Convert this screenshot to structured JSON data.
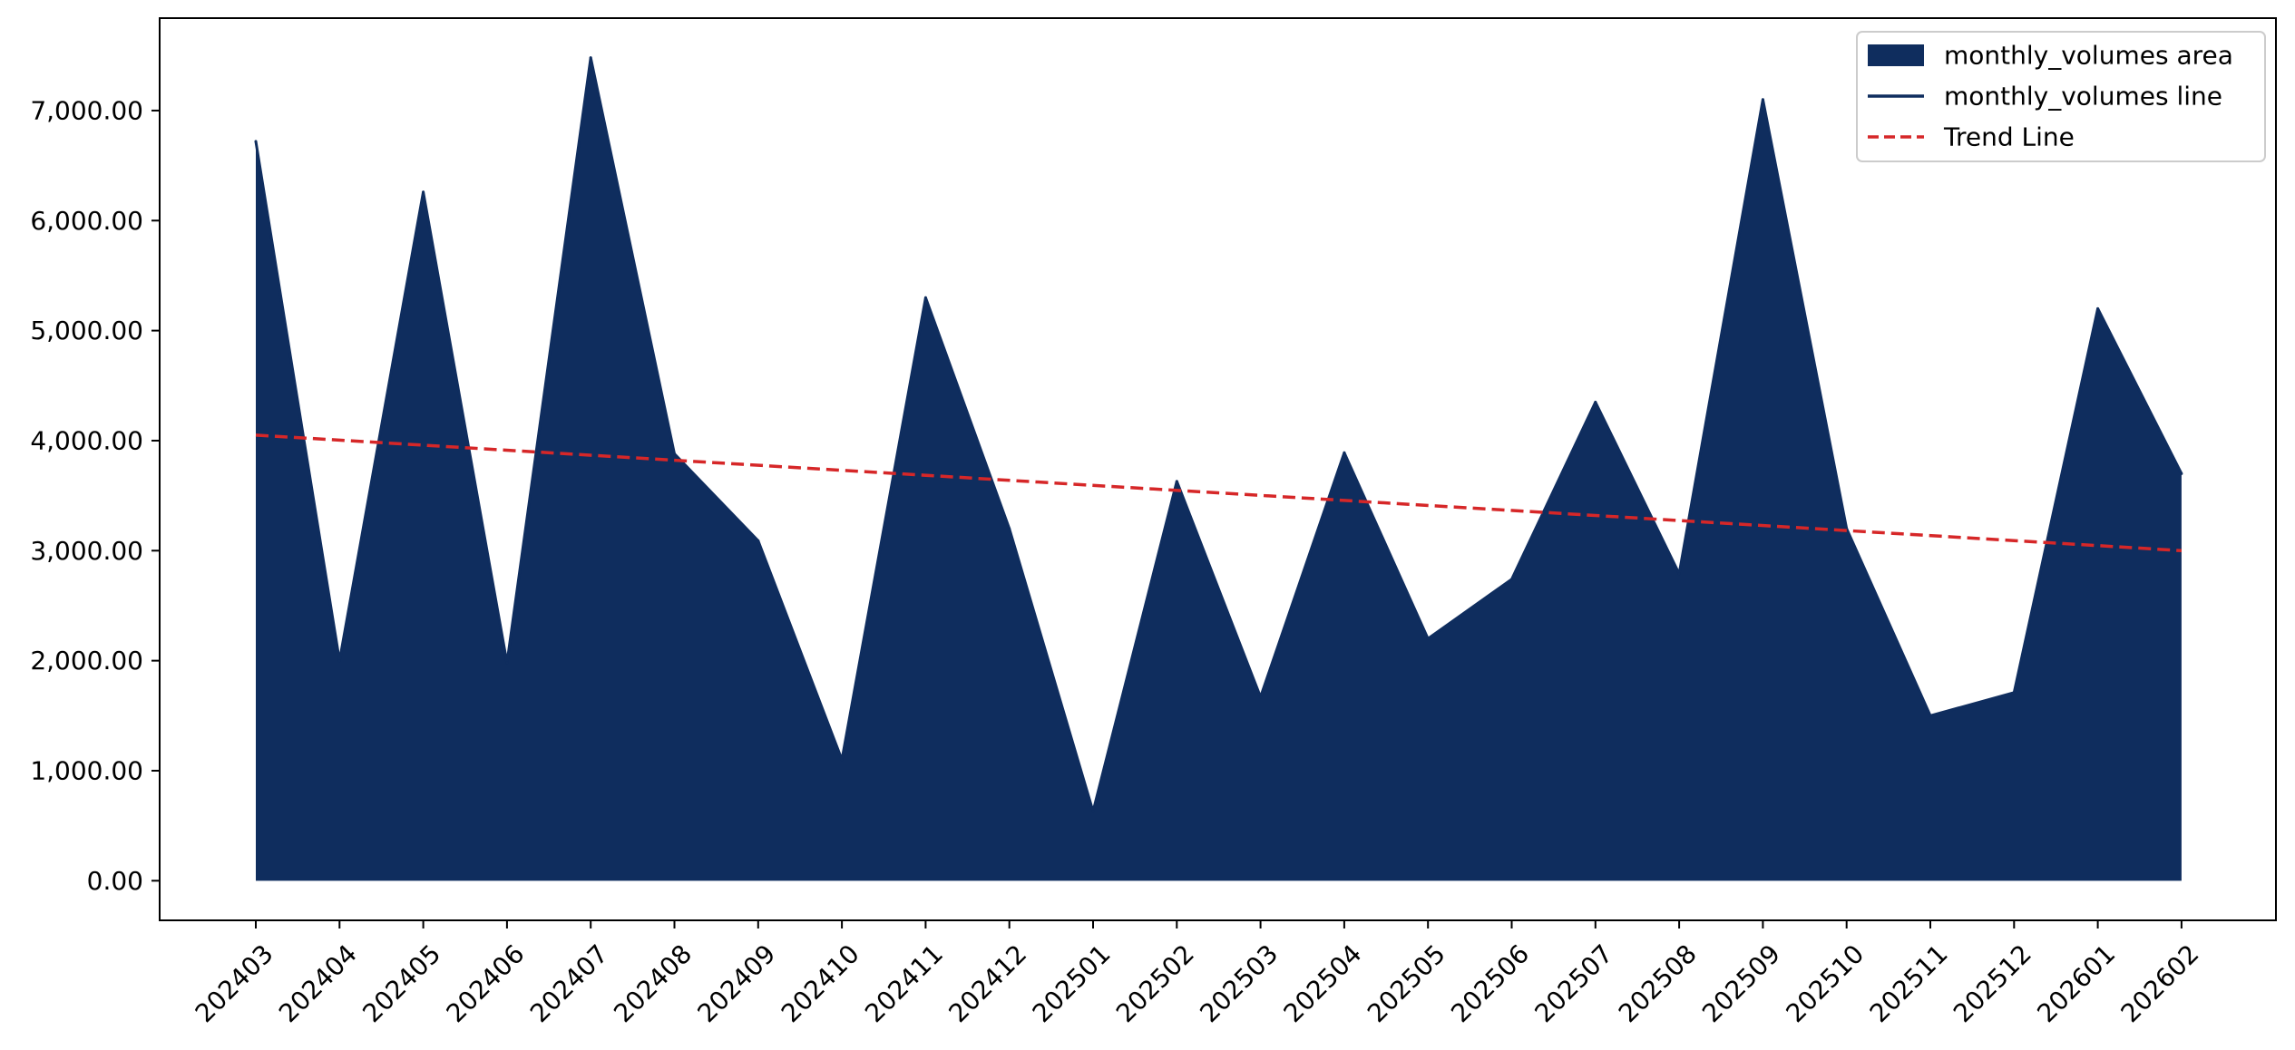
{
  "chart_data": {
    "type": "area",
    "categories": [
      "202403",
      "202404",
      "202405",
      "202406",
      "202407",
      "202408",
      "202409",
      "202410",
      "202411",
      "202412",
      "202501",
      "202502",
      "202503",
      "202504",
      "202505",
      "202506",
      "202507",
      "202508",
      "202509",
      "202510",
      "202511",
      "202512",
      "202601",
      "202602"
    ],
    "series": [
      {
        "name": "monthly_volumes area",
        "kind": "area",
        "values": [
          6720,
          2000,
          6260,
          1980,
          7480,
          3880,
          3090,
          1100,
          5300,
          3200,
          630,
          3630,
          1670,
          3890,
          2200,
          2740,
          4350,
          2790,
          7100,
          3200,
          1500,
          1710,
          5200,
          3700
        ]
      },
      {
        "name": "monthly_volumes line",
        "kind": "line",
        "values": [
          6720,
          2000,
          6260,
          1980,
          7480,
          3880,
          3090,
          1100,
          5300,
          3200,
          630,
          3630,
          1670,
          3890,
          2200,
          2740,
          4350,
          2790,
          7100,
          3200,
          1500,
          1710,
          5200,
          3700
        ]
      },
      {
        "name": "Trend Line",
        "kind": "trend",
        "start": 4050,
        "end": 3000
      }
    ],
    "y_ticks": [
      "0.00",
      "1,000.00",
      "2,000.00",
      "3,000.00",
      "4,000.00",
      "5,000.00",
      "6,000.00",
      "7,000.00"
    ],
    "y_tick_values": [
      0,
      1000,
      2000,
      3000,
      4000,
      5000,
      6000,
      7000
    ],
    "ylim": [
      -360,
      7840
    ],
    "title": "",
    "xlabel": "",
    "ylabel": "",
    "legend_position": "top-right",
    "grid": false,
    "colors": {
      "area": "#0f2d5e",
      "line": "#0f2d5e",
      "trend": "#d62728",
      "axes": "#000000"
    }
  }
}
